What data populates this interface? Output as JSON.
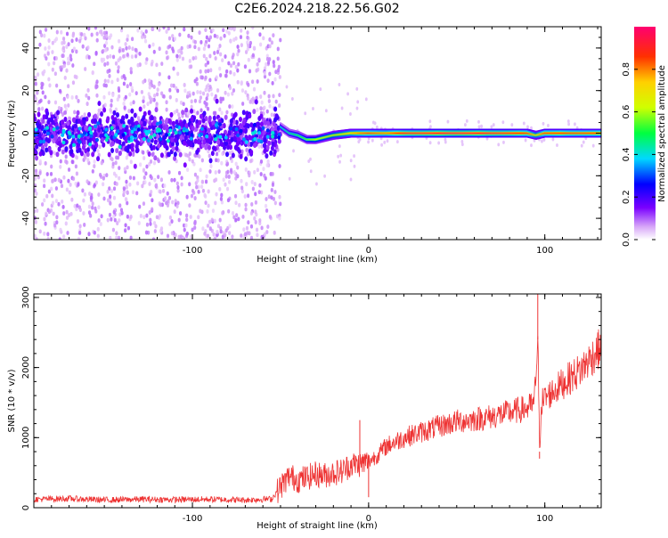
{
  "title": "C2E6.2024.218.22.56.G02",
  "chart_data": [
    {
      "type": "heatmap",
      "xlabel": "Height of straight line (km)",
      "ylabel": "Frequency (Hz)",
      "xlim": [
        -190,
        132
      ],
      "ylim": [
        -50,
        50
      ],
      "xticks": [
        -100,
        0,
        100
      ],
      "yticks": [
        -40,
        -20,
        0,
        20,
        40
      ],
      "colorbar": {
        "label": "Normalized spectral amplitude",
        "range": [
          0,
          1
        ],
        "ticks": [
          "0.0",
          "0.2",
          "0.4",
          "0.6",
          "0.8"
        ]
      },
      "noise_region": {
        "x_range": [
          -190,
          -50
        ],
        "freq_spread": 50
      },
      "signal_track": [
        {
          "x": -50,
          "freq": 3,
          "amp": 0.4
        },
        {
          "x": -45,
          "freq": 0,
          "amp": 0.45
        },
        {
          "x": -40,
          "freq": -1,
          "amp": 0.5
        },
        {
          "x": -35,
          "freq": -3,
          "amp": 0.55
        },
        {
          "x": -30,
          "freq": -3,
          "amp": 0.6
        },
        {
          "x": -20,
          "freq": -1,
          "amp": 0.65
        },
        {
          "x": -10,
          "freq": 0,
          "amp": 0.75
        },
        {
          "x": 0,
          "freq": 0,
          "amp": 0.85
        },
        {
          "x": 10,
          "freq": 0,
          "amp": 0.8
        },
        {
          "x": 20,
          "freq": 0,
          "amp": 0.9
        },
        {
          "x": 50,
          "freq": 0,
          "amp": 0.95
        },
        {
          "x": 80,
          "freq": 0,
          "amp": 0.9
        },
        {
          "x": 90,
          "freq": 0,
          "amp": 0.85
        },
        {
          "x": 95,
          "freq": -1,
          "amp": 0.7
        },
        {
          "x": 100,
          "freq": 0,
          "amp": 0.85
        },
        {
          "x": 132,
          "freq": 0,
          "amp": 0.85
        }
      ]
    },
    {
      "type": "line",
      "xlabel": "Height of straight line (km)",
      "ylabel": "SNR (10 * v/v)",
      "xlim": [
        -190,
        132
      ],
      "ylim": [
        0,
        3050
      ],
      "xticks": [
        -100,
        0,
        100
      ],
      "yticks": [
        0,
        1000,
        2000,
        3000
      ],
      "color": "#ee3333",
      "series": [
        {
          "x": [
            -190,
            -170,
            -150,
            -130,
            -110,
            -90,
            -70,
            -55,
            -50,
            -45,
            -40,
            -35,
            -30,
            -25,
            -20,
            -15,
            -10,
            -5,
            0,
            5,
            10,
            20,
            30,
            40,
            50,
            60,
            70,
            80,
            90,
            94,
            96,
            97,
            98,
            100,
            110,
            120,
            132
          ],
          "y": [
            120,
            130,
            110,
            120,
            115,
            120,
            110,
            125,
            300,
            450,
            400,
            430,
            480,
            460,
            500,
            520,
            620,
            620,
            660,
            750,
            880,
            1000,
            1080,
            1160,
            1230,
            1260,
            1300,
            1360,
            1420,
            1480,
            2400,
            800,
            1500,
            1560,
            1770,
            1960,
            2300
          ]
        }
      ],
      "spikes": [
        {
          "x": -5,
          "y": 1250
        },
        {
          "x": 0,
          "y": 150
        },
        {
          "x": 96,
          "y": 3050
        },
        {
          "x": 97,
          "y": 700
        }
      ]
    }
  ]
}
